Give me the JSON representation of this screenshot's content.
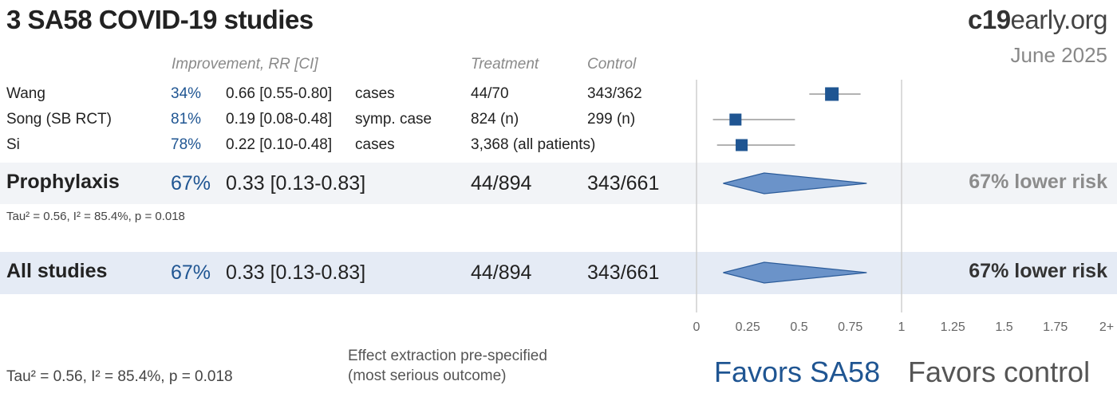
{
  "header": {
    "title": "3 SA58 COVID-19 studies",
    "brand_bold": "c19",
    "brand_rest": "early.org",
    "date": "June 2025"
  },
  "columns": {
    "improvement": "Improvement, RR [CI]",
    "treatment": "Treatment",
    "control": "Control"
  },
  "studies": [
    {
      "name": "Wang",
      "improvement": "34%",
      "rr": "0.66 [0.55-0.80]",
      "outcome": "cases",
      "treatment": "44/70",
      "control": "343/362"
    },
    {
      "name": "Song (SB RCT)",
      "improvement": "81%",
      "rr": "0.19 [0.08-0.48]",
      "outcome": "symp. case",
      "treatment": "824 (n)",
      "control": "299 (n)"
    },
    {
      "name": "Si",
      "improvement": "78%",
      "rr": "0.22 [0.10-0.48]",
      "outcome": "cases",
      "treatment": "3,368 (all patients)",
      "control": ""
    }
  ],
  "subgroups": [
    {
      "name": "Prophylaxis",
      "improvement": "67%",
      "rr": "0.33 [0.13-0.83]",
      "treatment": "44/894",
      "control": "343/661",
      "risk": "67% lower risk",
      "stats": "Tau² = 0.56, I² = 85.4%, p = 0.018"
    },
    {
      "name": "All studies",
      "improvement": "67%",
      "rr": "0.33 [0.13-0.83]",
      "treatment": "44/894",
      "control": "343/661",
      "risk": "67% lower risk",
      "stats": "Tau² = 0.56, I² = 85.4%, p = 0.018"
    }
  ],
  "footer": {
    "note_line1": "Effect extraction pre-specified",
    "note_line2": "(most serious outcome)",
    "favors_left": "Favors SA58",
    "favors_right": "Favors control"
  },
  "colors": {
    "accent": "#1f5592",
    "marker": "#1f5592",
    "diamond_fill": "#6b93c9",
    "diamond_stroke": "#2c5c9a",
    "band_subgroup": "#f2f4f7",
    "band_total": "#e5ebf5"
  },
  "chart_data": {
    "type": "forest",
    "x_ticks": [
      "0",
      "0.25",
      "0.5",
      "0.75",
      "1",
      "1.25",
      "1.5",
      "1.75",
      "2+"
    ],
    "xlim": [
      0,
      2
    ],
    "reference_line": 1,
    "studies": [
      {
        "name": "Wang",
        "rr": 0.66,
        "ci": [
          0.55,
          0.8
        ]
      },
      {
        "name": "Song (SB RCT)",
        "rr": 0.19,
        "ci": [
          0.08,
          0.48
        ]
      },
      {
        "name": "Si",
        "rr": 0.22,
        "ci": [
          0.1,
          0.48
        ]
      }
    ],
    "pooled": [
      {
        "name": "Prophylaxis",
        "rr": 0.33,
        "ci": [
          0.13,
          0.83
        ]
      },
      {
        "name": "All studies",
        "rr": 0.33,
        "ci": [
          0.13,
          0.83
        ]
      }
    ]
  }
}
